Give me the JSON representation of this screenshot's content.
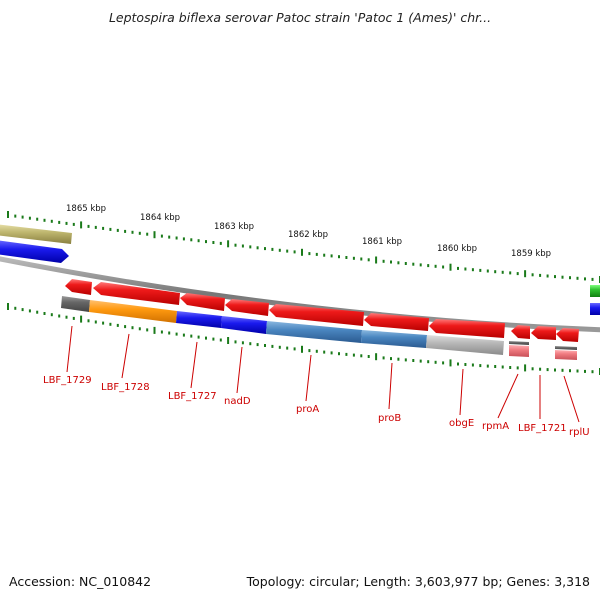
{
  "title": "Leptospira biflexa serovar Patoc strain 'Patoc 1 (Ames)' chr...",
  "footer": {
    "accession": "Accession: NC_010842",
    "summary": "Topology: circular; Length: 3,603,977 bp; Genes: 3,318"
  },
  "kbp_ticks": [
    "1865 kbp",
    "1864 kbp",
    "1863 kbp",
    "1862 kbp",
    "1861 kbp",
    "1860 kbp",
    "1859 kbp"
  ],
  "gene_labels": [
    "LBF_1729",
    "LBF_1728",
    "LBF_1727",
    "nadD",
    "proA",
    "proB",
    "obgE",
    "rpmA",
    "LBF_1721",
    "rplU"
  ],
  "colors": {
    "gene_red": "#e8141c",
    "cds_orange": "#ff9a10",
    "cds_blue": "#1a1aee",
    "cds_steelblue": "#4a86c0",
    "cds_gray": "#b8b8b8",
    "cds_darkgray": "#666666",
    "cds_pink": "#f07a80",
    "cds_olive": "#c0b870",
    "cds_green": "#2ec02e",
    "tick_green": "#1a7a1a",
    "backbone": "#888888"
  }
}
